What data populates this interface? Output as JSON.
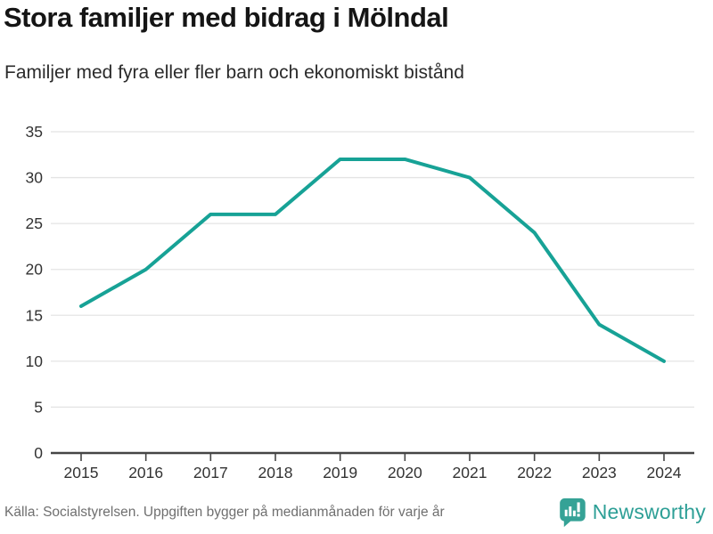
{
  "header": {
    "title": "Stora familjer med bidrag i Mölndal",
    "subtitle": "Familjer med fyra eller fler barn och ekonomiskt bistånd"
  },
  "chart_data": {
    "type": "line",
    "title": "Stora familjer med bidrag i Mölndal",
    "subtitle": "Familjer med fyra eller fler barn och ekonomiskt bistånd",
    "x": [
      2015,
      2016,
      2017,
      2018,
      2019,
      2020,
      2021,
      2022,
      2023,
      2024
    ],
    "values": [
      16,
      20,
      26,
      26,
      32,
      32,
      30,
      24,
      14,
      10
    ],
    "xlabel": "",
    "ylabel": "",
    "ylim": [
      0,
      35
    ],
    "yticks": [
      0,
      5,
      10,
      15,
      20,
      25,
      30,
      35
    ],
    "grid": true,
    "legend": "none",
    "line_color": "#17a296",
    "grid_color": "#e4e4e4",
    "axis_color": "#454545",
    "tick_label_color": "#333333"
  },
  "footer": {
    "source": "Källa: Socialstyrelsen. Uppgiften bygger på medianmånaden för varje år"
  },
  "branding": {
    "name": "Newsworthy",
    "logo_icon": "bar-chart-speech-bubble-icon",
    "color": "#2d9f96"
  }
}
